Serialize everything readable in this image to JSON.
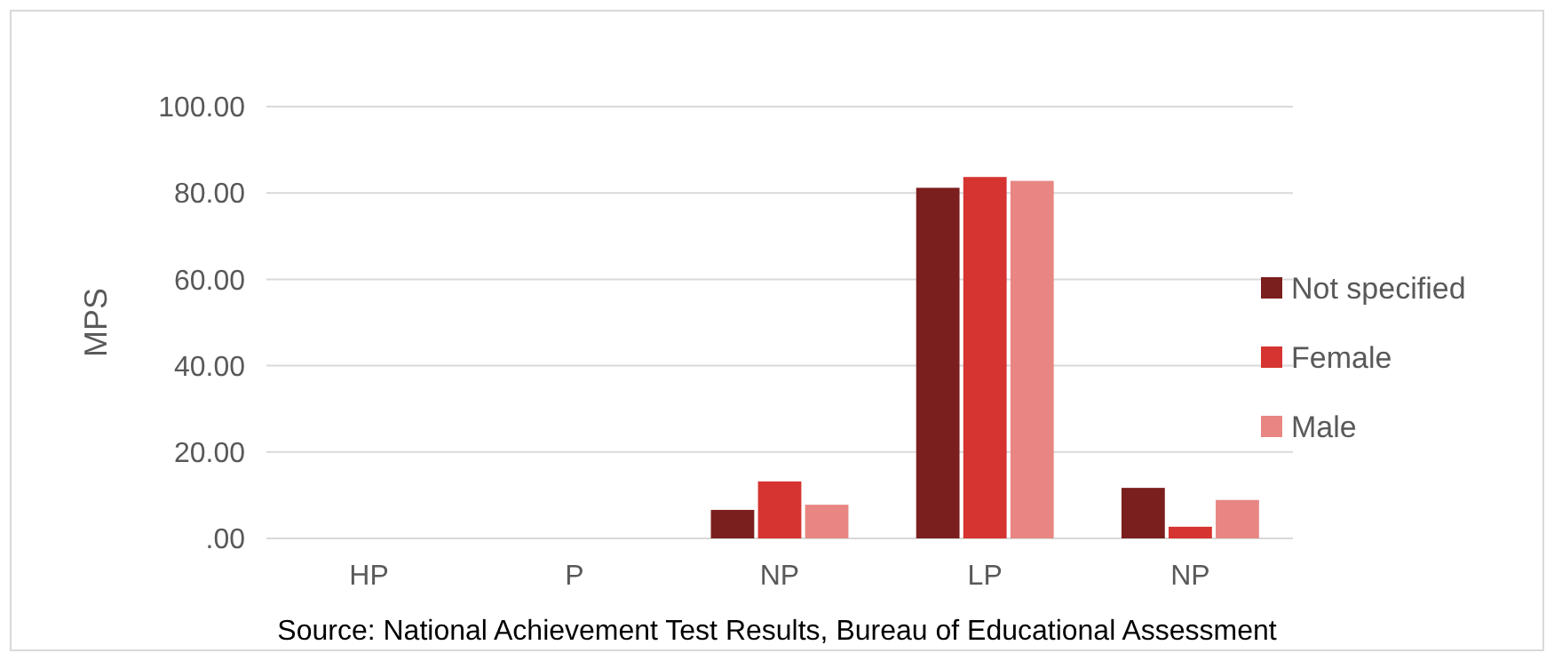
{
  "chart_data": {
    "type": "bar",
    "ylabel": "MPS",
    "categories": [
      "HP",
      "P",
      "NP",
      "LP",
      "NP"
    ],
    "series": [
      {
        "name": "Not specified",
        "color": "#7b1e1e",
        "values": [
          0,
          0,
          6.6,
          81.2,
          11.7
        ]
      },
      {
        "name": "Female",
        "color": "#d63430",
        "values": [
          0,
          0,
          13.2,
          83.7,
          2.7
        ]
      },
      {
        "name": "Male",
        "color": "#e88683",
        "values": [
          0,
          0,
          7.8,
          82.8,
          8.9
        ]
      }
    ],
    "ylim": [
      0,
      100
    ],
    "yticks": [
      {
        "value": 0,
        "label": ".00"
      },
      {
        "value": 20,
        "label": "20.00"
      },
      {
        "value": 40,
        "label": "40.00"
      },
      {
        "value": 60,
        "label": "60.00"
      },
      {
        "value": 80,
        "label": "80.00"
      },
      {
        "value": 100,
        "label": "100.00"
      }
    ],
    "grid": "y",
    "legend": "right",
    "annotations": [
      "Source: National Achievement Test Results, Bureau of Educational Assessment"
    ]
  }
}
